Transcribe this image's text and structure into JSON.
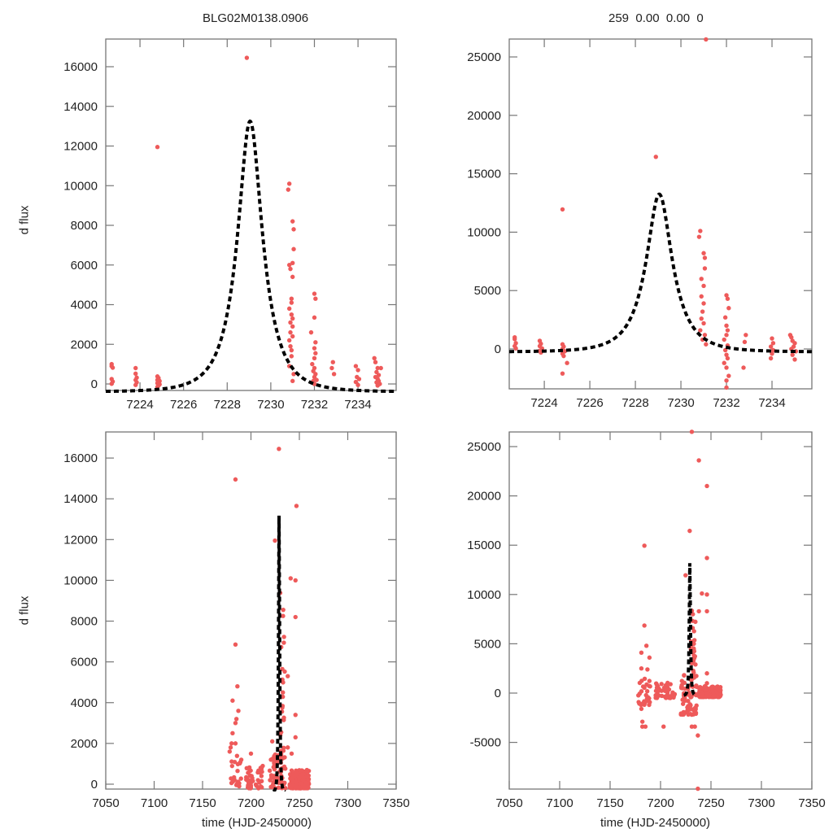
{
  "figure": {
    "panel_titles": {
      "top_left": "BLG02M0138.0906",
      "top_right": "259  0.00  0.00  0"
    },
    "ylabel": "d flux",
    "xlabel": "time (HJD-2450000)",
    "colors": {
      "points": "#ee5a5a",
      "model": "#000000",
      "axes": "#777777",
      "text": "#222222"
    }
  },
  "chart_data": [
    {
      "id": "top_left",
      "type": "scatter",
      "title": "BLG02M0138.0906",
      "xlabel": "",
      "ylabel": "d flux",
      "xlim": [
        7222.43,
        7235.75
      ],
      "ylim": [
        -328,
        17395
      ],
      "xticks": [
        7224,
        7226,
        7228,
        7230,
        7232,
        7234
      ],
      "yticks": [
        0,
        2000,
        4000,
        6000,
        8000,
        10000,
        12000,
        14000,
        16000
      ],
      "grid": false,
      "model": {
        "type": "paczynski",
        "t0": 7229.05,
        "peak": 13250,
        "tE": 1.35,
        "baseline": -400,
        "style": "dashed"
      },
      "points": [
        [
          7222.7,
          1000
        ],
        [
          7222.7,
          900
        ],
        [
          7222.75,
          820
        ],
        [
          7222.7,
          250
        ],
        [
          7222.75,
          120
        ],
        [
          7222.7,
          10
        ],
        [
          7223.8,
          800
        ],
        [
          7223.8,
          520
        ],
        [
          7223.85,
          320
        ],
        [
          7223.8,
          200
        ],
        [
          7223.85,
          80
        ],
        [
          7223.8,
          -50
        ],
        [
          7224.8,
          380
        ],
        [
          7224.85,
          300
        ],
        [
          7224.8,
          200
        ],
        [
          7224.9,
          150
        ],
        [
          7224.85,
          80
        ],
        [
          7224.8,
          40
        ],
        [
          7224.9,
          -20
        ],
        [
          7224.85,
          -80
        ],
        [
          7224.8,
          -150
        ],
        [
          7224.8,
          11950
        ],
        [
          7228.9,
          16450
        ],
        [
          7230.85,
          10100
        ],
        [
          7230.8,
          9800
        ],
        [
          7231.0,
          8200
        ],
        [
          7231.05,
          7800
        ],
        [
          7231.05,
          6800
        ],
        [
          7231.0,
          6100
        ],
        [
          7230.85,
          6000
        ],
        [
          7230.9,
          5800
        ],
        [
          7231.0,
          5400
        ],
        [
          7230.95,
          4300
        ],
        [
          7230.95,
          4100
        ],
        [
          7230.85,
          3800
        ],
        [
          7230.95,
          3500
        ],
        [
          7231.0,
          3300
        ],
        [
          7230.9,
          3100
        ],
        [
          7231.0,
          2900
        ],
        [
          7230.9,
          2600
        ],
        [
          7231.0,
          2400
        ],
        [
          7230.85,
          2200
        ],
        [
          7230.9,
          1900
        ],
        [
          7230.95,
          1700
        ],
        [
          7230.95,
          1400
        ],
        [
          7230.85,
          900
        ],
        [
          7231.05,
          500
        ],
        [
          7231.0,
          150
        ],
        [
          7232.0,
          4550
        ],
        [
          7232.05,
          4300
        ],
        [
          7232.0,
          3350
        ],
        [
          7231.85,
          2600
        ],
        [
          7232.05,
          2100
        ],
        [
          7232.0,
          1800
        ],
        [
          7232.05,
          1550
        ],
        [
          7232.0,
          1300
        ],
        [
          7231.9,
          1000
        ],
        [
          7232.0,
          800
        ],
        [
          7231.95,
          650
        ],
        [
          7232.05,
          500
        ],
        [
          7232.0,
          350
        ],
        [
          7232.1,
          200
        ],
        [
          7231.95,
          150
        ],
        [
          7232.0,
          0
        ],
        [
          7232.85,
          1100
        ],
        [
          7232.8,
          800
        ],
        [
          7232.9,
          500
        ],
        [
          7233.9,
          900
        ],
        [
          7234.0,
          700
        ],
        [
          7233.95,
          350
        ],
        [
          7234.05,
          250
        ],
        [
          7233.9,
          100
        ],
        [
          7234.0,
          -50
        ],
        [
          7234.75,
          1300
        ],
        [
          7234.8,
          1100
        ],
        [
          7234.9,
          800
        ],
        [
          7234.85,
          600
        ],
        [
          7234.95,
          450
        ],
        [
          7234.8,
          350
        ],
        [
          7234.9,
          250
        ],
        [
          7234.95,
          150
        ],
        [
          7234.85,
          80
        ],
        [
          7235.0,
          0
        ],
        [
          7234.9,
          -80
        ],
        [
          7235.05,
          800
        ]
      ]
    },
    {
      "id": "top_right",
      "type": "scatter",
      "title": "259  0.00  0.00  0",
      "xlabel": "",
      "ylabel": "",
      "xlim": [
        7222.46,
        7235.75
      ],
      "ylim": [
        -3412,
        26532
      ],
      "xticks": [
        7224,
        7226,
        7228,
        7230,
        7232,
        7234
      ],
      "yticks": [
        0,
        5000,
        10000,
        15000,
        20000,
        25000
      ],
      "grid": false,
      "model": {
        "type": "paczynski",
        "t0": 7229.05,
        "peak": 13250,
        "tE": 1.35,
        "baseline": -250,
        "style": "dashed"
      },
      "points": [
        [
          7222.7,
          1000
        ],
        [
          7222.7,
          850
        ],
        [
          7222.75,
          500
        ],
        [
          7222.7,
          250
        ],
        [
          7222.75,
          50
        ],
        [
          7223.8,
          700
        ],
        [
          7223.85,
          450
        ],
        [
          7223.8,
          250
        ],
        [
          7223.9,
          50
        ],
        [
          7223.8,
          -150
        ],
        [
          7223.85,
          -300
        ],
        [
          7224.8,
          400
        ],
        [
          7224.85,
          200
        ],
        [
          7224.8,
          0
        ],
        [
          7224.9,
          -200
        ],
        [
          7224.8,
          -400
        ],
        [
          7224.85,
          -600
        ],
        [
          7225.0,
          -1200
        ],
        [
          7224.8,
          -2100
        ],
        [
          7224.8,
          11950
        ],
        [
          7228.9,
          16450
        ],
        [
          7231.1,
          26500
        ],
        [
          7230.85,
          10100
        ],
        [
          7230.8,
          9600
        ],
        [
          7231.0,
          8200
        ],
        [
          7231.05,
          7800
        ],
        [
          7231.05,
          6900
        ],
        [
          7230.9,
          6000
        ],
        [
          7231.0,
          5400
        ],
        [
          7230.9,
          4500
        ],
        [
          7231.0,
          3900
        ],
        [
          7230.95,
          3200
        ],
        [
          7230.9,
          2600
        ],
        [
          7231.0,
          2200
        ],
        [
          7230.85,
          1600
        ],
        [
          7231.05,
          1200
        ],
        [
          7230.95,
          800
        ],
        [
          7231.1,
          400
        ],
        [
          7232.0,
          4600
        ],
        [
          7232.05,
          4300
        ],
        [
          7232.1,
          3500
        ],
        [
          7231.95,
          2700
        ],
        [
          7232.0,
          2000
        ],
        [
          7232.05,
          1600
        ],
        [
          7232.0,
          1200
        ],
        [
          7231.9,
          800
        ],
        [
          7232.05,
          300
        ],
        [
          7231.95,
          -100
        ],
        [
          7232.0,
          -500
        ],
        [
          7232.05,
          -800
        ],
        [
          7231.9,
          -1200
        ],
        [
          7232.0,
          -1600
        ],
        [
          7232.1,
          -2300
        ],
        [
          7232.0,
          -2700
        ],
        [
          7232.0,
          -3300
        ],
        [
          7232.85,
          1200
        ],
        [
          7232.8,
          600
        ],
        [
          7232.75,
          -1600
        ],
        [
          7234.0,
          900
        ],
        [
          7234.05,
          500
        ],
        [
          7233.95,
          200
        ],
        [
          7234.05,
          -100
        ],
        [
          7234.0,
          -400
        ],
        [
          7233.95,
          -800
        ],
        [
          7234.8,
          1200
        ],
        [
          7234.85,
          1000
        ],
        [
          7234.9,
          700
        ],
        [
          7235.0,
          500
        ],
        [
          7234.95,
          200
        ],
        [
          7234.85,
          0
        ],
        [
          7235.05,
          -200
        ],
        [
          7234.9,
          -500
        ],
        [
          7235.0,
          -900
        ]
      ]
    },
    {
      "id": "bottom_left",
      "type": "scatter",
      "title": "",
      "xlabel": "time (HJD-2450000)",
      "ylabel": "d flux",
      "xlim": [
        7050,
        7350
      ],
      "ylim": [
        -240,
        17280
      ],
      "xticks": [
        7050,
        7100,
        7150,
        7200,
        7250,
        7300,
        7350
      ],
      "yticks": [
        0,
        2000,
        4000,
        6000,
        8000,
        10000,
        12000,
        14000,
        16000
      ],
      "grid": false,
      "model": {
        "type": "paczynski",
        "t0": 7229.05,
        "peak": 13250,
        "tE": 1.35,
        "baseline": -400,
        "style": "dashed"
      },
      "points": [
        [
          7228.9,
          16450
        ],
        [
          7184,
          14950
        ],
        [
          7247,
          13650
        ],
        [
          7224.8,
          11950
        ],
        [
          7241,
          10100
        ],
        [
          7246,
          10000
        ],
        [
          7246,
          8200
        ],
        [
          7184,
          6850
        ],
        [
          7238,
          5300
        ],
        [
          7233,
          4500
        ],
        [
          7186,
          4800
        ],
        [
          7181,
          4100
        ],
        [
          7187,
          3600
        ],
        [
          7185,
          3200
        ],
        [
          7184,
          3000
        ],
        [
          7181,
          2500
        ],
        [
          7180,
          2000
        ],
        [
          7184,
          2000
        ],
        [
          7200,
          1500
        ],
        [
          7210,
          800
        ],
        [
          7222,
          2100
        ],
        [
          7238,
          1800
        ],
        [
          7242,
          1500
        ],
        [
          7246,
          3400
        ],
        [
          7246,
          2300
        ],
        [
          7190,
          1200
        ],
        [
          7178,
          1600
        ],
        [
          7179,
          1800
        ]
      ],
      "dense_clusters": [
        {
          "x": [
            7178,
            7190
          ],
          "y": [
            -200,
            1400
          ],
          "n": 22
        },
        {
          "x": [
            7195,
            7202
          ],
          "y": [
            -200,
            900
          ],
          "n": 30
        },
        {
          "x": [
            7205,
            7214
          ],
          "y": [
            -200,
            900
          ],
          "n": 16
        },
        {
          "x": [
            7219,
            7236
          ],
          "y": [
            -200,
            1500
          ],
          "n": 60
        },
        {
          "x": [
            7230,
            7235
          ],
          "y": [
            1000,
            9500
          ],
          "n": 25
        },
        {
          "x": [
            7240,
            7260
          ],
          "y": [
            -200,
            700
          ],
          "n": 180
        }
      ]
    },
    {
      "id": "bottom_right",
      "type": "scatter",
      "title": "",
      "xlabel": "time (HJD-2450000)",
      "ylabel": "",
      "xlim": [
        7050,
        7350
      ],
      "ylim": [
        -9736,
        26485
      ],
      "xticks": [
        7050,
        7100,
        7150,
        7200,
        7250,
        7300,
        7350
      ],
      "yticks": [
        -5000,
        0,
        5000,
        10000,
        15000,
        20000,
        25000
      ],
      "grid": false,
      "model": {
        "type": "paczynski",
        "t0": 7229.05,
        "peak": 13250,
        "tE": 1.35,
        "baseline": -250,
        "style": "dashed"
      },
      "points": [
        [
          7231,
          26500
        ],
        [
          7238,
          23600
        ],
        [
          7246,
          21000
        ],
        [
          7228.9,
          16450
        ],
        [
          7184,
          14950
        ],
        [
          7246,
          13700
        ],
        [
          7224.8,
          11950
        ],
        [
          7241,
          10100
        ],
        [
          7246,
          10000
        ],
        [
          7238,
          8300
        ],
        [
          7246,
          8300
        ],
        [
          7184,
          6850
        ],
        [
          7233,
          5000
        ],
        [
          7246,
          2000
        ],
        [
          7246,
          1000
        ],
        [
          7186,
          4800
        ],
        [
          7181,
          4100
        ],
        [
          7189,
          3600
        ],
        [
          7187,
          2400
        ],
        [
          7181,
          2500
        ],
        [
          7181,
          -1600
        ],
        [
          7182,
          -2900
        ],
        [
          7182,
          -3400
        ],
        [
          7185,
          -3400
        ],
        [
          7203,
          -3400
        ],
        [
          7231,
          -3400
        ],
        [
          7234,
          -3400
        ],
        [
          7237,
          -4300
        ],
        [
          7237,
          -9700
        ]
      ],
      "dense_clusters": [
        {
          "x": [
            7178,
            7190
          ],
          "y": [
            -1200,
            2000
          ],
          "n": 30
        },
        {
          "x": [
            7195,
            7215
          ],
          "y": [
            -500,
            1200
          ],
          "n": 45
        },
        {
          "x": [
            7220,
            7236
          ],
          "y": [
            -2200,
            2000
          ],
          "n": 70
        },
        {
          "x": [
            7230,
            7235
          ],
          "y": [
            1500,
            9000
          ],
          "n": 25
        },
        {
          "x": [
            7238,
            7260
          ],
          "y": [
            -400,
            700
          ],
          "n": 160
        }
      ]
    }
  ]
}
